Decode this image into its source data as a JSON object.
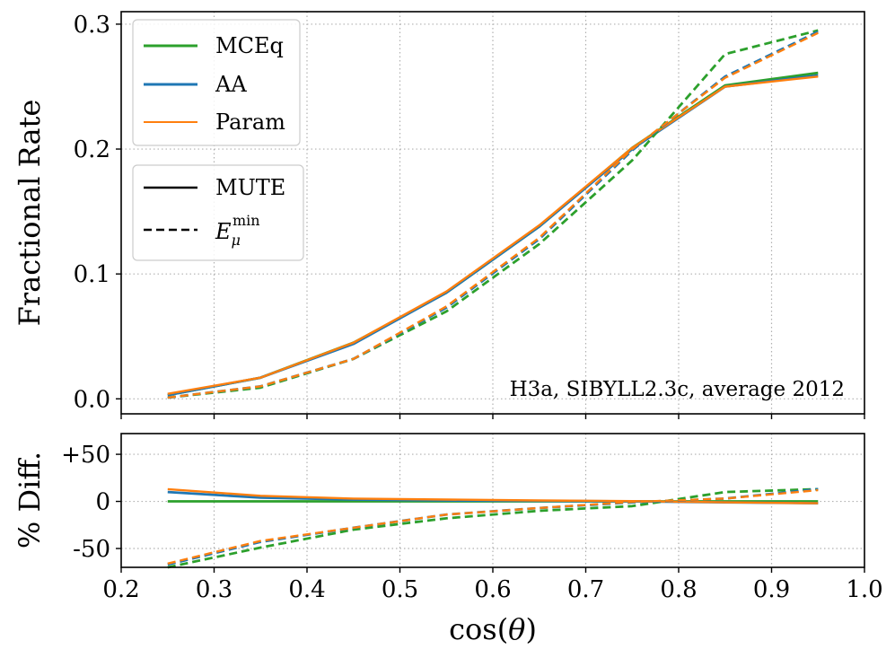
{
  "chart_data": [
    {
      "type": "line",
      "panel": "top",
      "ylabel": "Fractional Rate",
      "xlim": [
        0.2,
        1.0
      ],
      "ylim": [
        -0.012,
        0.31
      ],
      "yticks": [
        0.0,
        0.1,
        0.2,
        0.3
      ],
      "ytick_labels": [
        "0.0",
        "0.1",
        "0.2",
        "0.3"
      ],
      "grid": true,
      "annotation": "H3a, SIBYLL2.3c, average 2012",
      "x": [
        0.25,
        0.35,
        0.45,
        0.55,
        0.65,
        0.75,
        0.85,
        0.95
      ],
      "series": [
        {
          "name": "MCEq",
          "style": "MUTE",
          "color": "#2ca02c",
          "values": [
            0.003,
            0.017,
            0.045,
            0.085,
            0.138,
            0.201,
            0.251,
            0.261
          ]
        },
        {
          "name": "AA",
          "style": "MUTE",
          "color": "#1f77b4",
          "values": [
            0.003,
            0.017,
            0.044,
            0.085,
            0.138,
            0.2,
            0.25,
            0.259
          ]
        },
        {
          "name": "Param",
          "style": "MUTE",
          "color": "#ff7f0e",
          "values": [
            0.004,
            0.017,
            0.045,
            0.086,
            0.139,
            0.201,
            0.25,
            0.258
          ]
        },
        {
          "name": "MCEq",
          "style": "Emin",
          "color": "#2ca02c",
          "values": [
            0.001,
            0.009,
            0.032,
            0.07,
            0.124,
            0.191,
            0.276,
            0.295
          ]
        },
        {
          "name": "AA",
          "style": "Emin",
          "color": "#1f77b4",
          "values": [
            0.001,
            0.01,
            0.032,
            0.073,
            0.128,
            0.199,
            0.258,
            0.294
          ]
        },
        {
          "name": "Param",
          "style": "Emin",
          "color": "#ff7f0e",
          "values": [
            0.001,
            0.01,
            0.032,
            0.074,
            0.129,
            0.2,
            0.257,
            0.293
          ]
        }
      ]
    },
    {
      "type": "line",
      "panel": "bottom",
      "ylabel": "% Diff.",
      "xlabel": "cos(θ)",
      "xlim": [
        0.2,
        1.0
      ],
      "ylim": [
        -70,
        72
      ],
      "yticks": [
        50,
        0,
        -50
      ],
      "ytick_labels": [
        "+50",
        "0",
        "-50"
      ],
      "xticks": [
        0.2,
        0.3,
        0.4,
        0.5,
        0.6,
        0.7,
        0.8,
        0.9,
        1.0
      ],
      "xtick_labels": [
        "0.2",
        "0.3",
        "0.4",
        "0.5",
        "0.6",
        "0.7",
        "0.8",
        "0.9",
        "1.0"
      ],
      "grid": true,
      "x": [
        0.25,
        0.35,
        0.45,
        0.55,
        0.65,
        0.75,
        0.85,
        0.95
      ],
      "series": [
        {
          "name": "MCEq",
          "style": "MUTE",
          "color": "#2ca02c",
          "values": [
            0,
            0,
            0,
            0,
            0,
            0,
            0,
            0
          ]
        },
        {
          "name": "AA",
          "style": "MUTE",
          "color": "#1f77b4",
          "values": [
            10,
            4,
            2,
            1,
            0.5,
            0,
            -1,
            -2
          ]
        },
        {
          "name": "Param",
          "style": "MUTE",
          "color": "#ff7f0e",
          "values": [
            13,
            6,
            3,
            2,
            1,
            0.3,
            -1,
            -2
          ]
        },
        {
          "name": "MCEq",
          "style": "Emin",
          "color": "#2ca02c",
          "values": [
            -70,
            -49,
            -30,
            -18,
            -10,
            -5,
            10,
            13
          ]
        },
        {
          "name": "AA",
          "style": "Emin",
          "color": "#1f77b4",
          "values": [
            -67,
            -43,
            -28,
            -14,
            -7,
            -1,
            3,
            13
          ]
        },
        {
          "name": "Param",
          "style": "Emin",
          "color": "#ff7f0e",
          "values": [
            -66,
            -42,
            -28,
            -14,
            -7,
            -0.5,
            3,
            12
          ]
        }
      ]
    }
  ],
  "legend": {
    "models": [
      {
        "label": "MCEq",
        "color": "#2ca02c"
      },
      {
        "label": "AA",
        "color": "#1f77b4"
      },
      {
        "label": "Param",
        "color": "#ff7f0e"
      }
    ],
    "styles": [
      {
        "label": "MUTE"
      },
      {
        "label_base": "E",
        "label_sub": "μ",
        "label_sup": "min"
      }
    ]
  }
}
